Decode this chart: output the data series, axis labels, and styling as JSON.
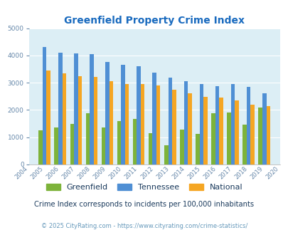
{
  "title": "Greenfield Property Crime Index",
  "plot_years": [
    2005,
    2006,
    2007,
    2008,
    2009,
    2010,
    2011,
    2012,
    2013,
    2014,
    2015,
    2016,
    2017,
    2018,
    2019
  ],
  "greenfield": [
    1250,
    1350,
    1500,
    1870,
    1350,
    1600,
    1680,
    1140,
    700,
    1270,
    1120,
    1870,
    1900,
    1460,
    2080
  ],
  "tennessee": [
    4320,
    4100,
    4080,
    4040,
    3760,
    3660,
    3600,
    3380,
    3190,
    3060,
    2950,
    2880,
    2940,
    2840,
    2620
  ],
  "national": [
    3450,
    3340,
    3250,
    3220,
    3050,
    2960,
    2950,
    2890,
    2730,
    2600,
    2490,
    2460,
    2360,
    2200,
    2140
  ],
  "bar_width": 0.25,
  "ylim": [
    0,
    5000
  ],
  "yticks": [
    0,
    1000,
    2000,
    3000,
    4000,
    5000
  ],
  "greenfield_color": "#7db33a",
  "tennessee_color": "#4f8fd4",
  "national_color": "#f5a623",
  "background_color": "#dceef5",
  "subtitle": "Crime Index corresponds to incidents per 100,000 inhabitants",
  "footer": "© 2025 CityRating.com - https://www.cityrating.com/crime-statistics/",
  "title_color": "#1a6bbf",
  "subtitle_color": "#1a3a5c",
  "footer_color": "#6699bb",
  "legend_labels": [
    "Greenfield",
    "Tennessee",
    "National"
  ],
  "legend_text_color": "#1a3a5c"
}
